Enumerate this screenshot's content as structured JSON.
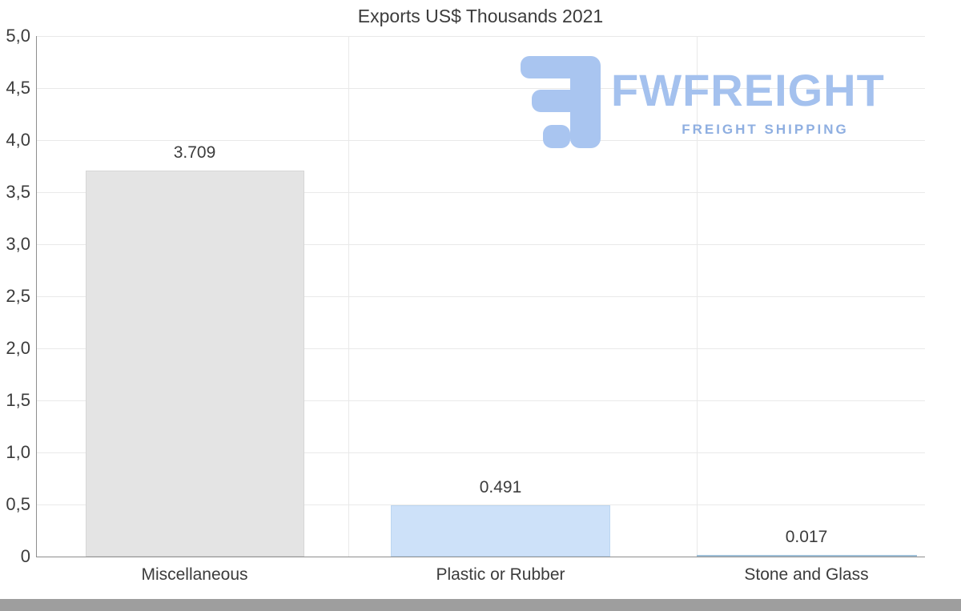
{
  "title": "Exports US$ Thousands 2021",
  "logo": {
    "brand": "FWFREIGHT",
    "tagline": "FREIGHT SHIPPING"
  },
  "chart_data": {
    "type": "bar",
    "title": "Exports US$ Thousands 2021",
    "categories": [
      "Miscellaneous",
      "Plastic or Rubber",
      "Stone and Glass"
    ],
    "values": [
      3.709,
      0.491,
      0.017
    ],
    "value_labels": [
      "3.709",
      "0.491",
      "0.017"
    ],
    "xlabel": "",
    "ylabel": "",
    "ylim": [
      0,
      5
    ],
    "ytick_step": 0.5,
    "ytick_labels": [
      "5,0",
      "4,5",
      "4,0",
      "3,5",
      "3,0",
      "2,5",
      "2,0",
      "1,5",
      "1,0",
      "0,5",
      "0"
    ],
    "decimal_separator_axis": ",",
    "grid": true,
    "legend": "none"
  },
  "colors": {
    "background": "#ffffff",
    "text": "#3c3c3c",
    "grid": "#e9e9e9",
    "axis": "#8e8e8e",
    "bar_miscellaneous": "#e4e4e4",
    "bar_miscellaneous_border": "#d6d6d6",
    "bar_plastic": "#cde1f9",
    "bar_plastic_border": "#bcd6f1",
    "bar_stone": "#d9eafa",
    "bar_stone_border": "#9fc0d8",
    "logo_primary": "#a4c1ee",
    "logo_tagline": "#8fafe1",
    "bottom_strip": "#9e9e9e"
  }
}
